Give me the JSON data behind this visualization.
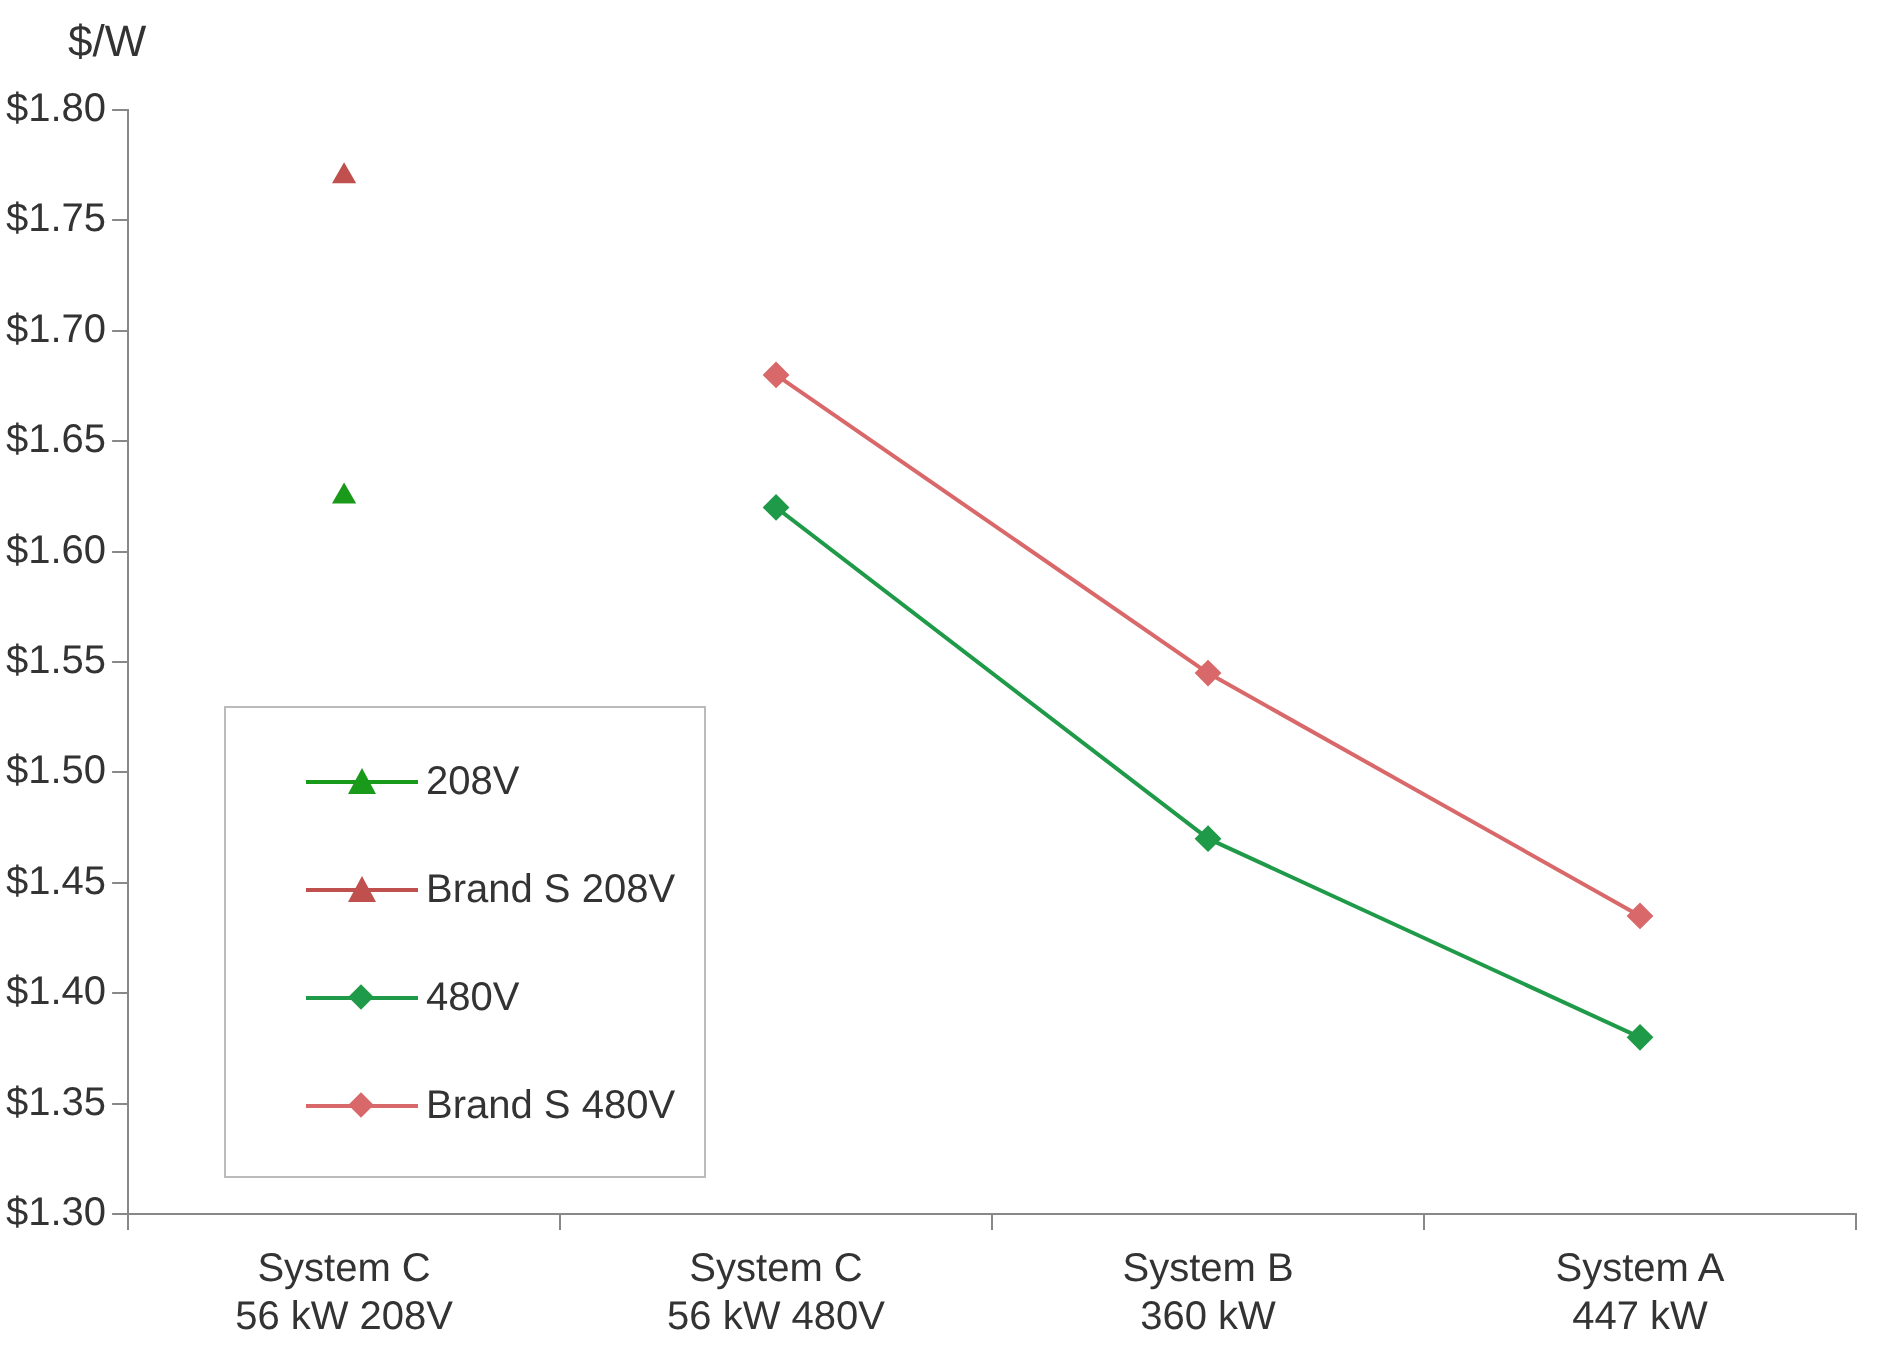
{
  "chart_data": {
    "type": "line",
    "ylabel": "$/W",
    "categories": [
      "System C\n56 kW 208V",
      "System C\n56 kW 480V",
      "System B\n360 kW",
      "System A\n447 kW"
    ],
    "series": [
      {
        "name": "208V",
        "color": "#1a9a1a",
        "marker": "triangle",
        "values": [
          1.625,
          null,
          null,
          null
        ]
      },
      {
        "name": "Brand S 208V",
        "color": "#c0504d",
        "marker": "triangle",
        "values": [
          1.77,
          null,
          null,
          null
        ]
      },
      {
        "name": "480V",
        "color": "#1f9a48",
        "marker": "diamond",
        "values": [
          null,
          1.62,
          1.47,
          1.38
        ]
      },
      {
        "name": "Brand S 480V",
        "color": "#d9686a",
        "marker": "diamond",
        "values": [
          null,
          1.68,
          1.545,
          1.435
        ]
      }
    ],
    "ylim": [
      1.3,
      1.8
    ],
    "yticks": [
      {
        "value": 1.3,
        "label": "$1.30"
      },
      {
        "value": 1.35,
        "label": "$1.35"
      },
      {
        "value": 1.4,
        "label": "$1.40"
      },
      {
        "value": 1.45,
        "label": "$1.45"
      },
      {
        "value": 1.5,
        "label": "$1.50"
      },
      {
        "value": 1.55,
        "label": "$1.55"
      },
      {
        "value": 1.6,
        "label": "$1.60"
      },
      {
        "value": 1.65,
        "label": "$1.65"
      },
      {
        "value": 1.7,
        "label": "$1.70"
      },
      {
        "value": 1.75,
        "label": "$1.75"
      },
      {
        "value": 1.8,
        "label": "$1.80"
      }
    ],
    "grid": false,
    "legend": "bottom left"
  }
}
